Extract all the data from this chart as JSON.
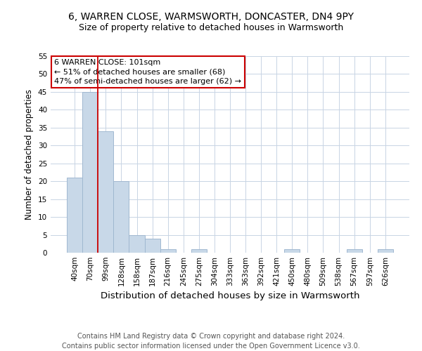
{
  "title": "6, WARREN CLOSE, WARMSWORTH, DONCASTER, DN4 9PY",
  "subtitle": "Size of property relative to detached houses in Warmsworth",
  "xlabel": "Distribution of detached houses by size in Warmsworth",
  "ylabel": "Number of detached properties",
  "categories": [
    "40sqm",
    "70sqm",
    "99sqm",
    "128sqm",
    "158sqm",
    "187sqm",
    "216sqm",
    "245sqm",
    "275sqm",
    "304sqm",
    "333sqm",
    "363sqm",
    "392sqm",
    "421sqm",
    "450sqm",
    "480sqm",
    "509sqm",
    "538sqm",
    "567sqm",
    "597sqm",
    "626sqm"
  ],
  "values": [
    21,
    45,
    34,
    20,
    5,
    4,
    1,
    0,
    1,
    0,
    0,
    0,
    0,
    0,
    1,
    0,
    0,
    0,
    1,
    0,
    1
  ],
  "bar_color": "#c8d8e8",
  "bar_edge_color": "#a0b8d0",
  "property_line_index": 2,
  "property_line_color": "#cc0000",
  "annotation_text": "6 WARREN CLOSE: 101sqm\n← 51% of detached houses are smaller (68)\n47% of semi-detached houses are larger (62) →",
  "annotation_box_color": "#cc0000",
  "ylim": [
    0,
    55
  ],
  "yticks": [
    0,
    5,
    10,
    15,
    20,
    25,
    30,
    35,
    40,
    45,
    50,
    55
  ],
  "footnote": "Contains HM Land Registry data © Crown copyright and database right 2024.\nContains public sector information licensed under the Open Government Licence v3.0.",
  "title_fontsize": 10,
  "subtitle_fontsize": 9,
  "xlabel_fontsize": 9.5,
  "ylabel_fontsize": 8.5,
  "tick_fontsize": 7.5,
  "annotation_fontsize": 8,
  "footnote_fontsize": 7,
  "background_color": "#ffffff",
  "grid_color": "#c8d4e4"
}
